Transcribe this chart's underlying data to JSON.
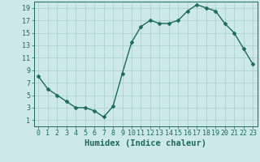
{
  "x": [
    0,
    1,
    2,
    3,
    4,
    5,
    6,
    7,
    8,
    9,
    10,
    11,
    12,
    13,
    14,
    15,
    16,
    17,
    18,
    19,
    20,
    21,
    22,
    23
  ],
  "y": [
    8,
    6,
    5,
    4,
    3,
    3,
    2.5,
    1.5,
    3.2,
    8.5,
    13.5,
    16,
    17,
    16.5,
    16.5,
    17,
    18.5,
    19.5,
    19,
    18.5,
    16.5,
    15,
    12.5,
    10
  ],
  "line_color": "#1a6b5a",
  "marker_color": "#1a6b5a",
  "bg_color": "#cce8e8",
  "grid_color": "#aacece",
  "xlabel": "Humidex (Indice chaleur)",
  "xlim": [
    -0.5,
    23.5
  ],
  "ylim": [
    0,
    20
  ],
  "yticks": [
    1,
    3,
    5,
    7,
    9,
    11,
    13,
    15,
    17,
    19
  ],
  "xticks": [
    0,
    1,
    2,
    3,
    4,
    5,
    6,
    7,
    8,
    9,
    10,
    11,
    12,
    13,
    14,
    15,
    16,
    17,
    18,
    19,
    20,
    21,
    22,
    23
  ],
  "marker_size": 2.5,
  "line_width": 1.0,
  "xlabel_fontsize": 7.5,
  "tick_fontsize": 6.0
}
